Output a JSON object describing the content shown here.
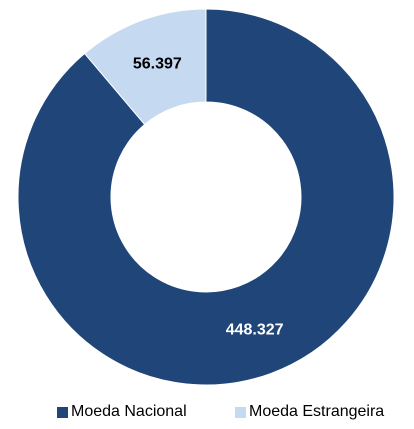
{
  "chart_data": {
    "type": "pie",
    "style": "donut",
    "categories": [
      "Moeda Nacional",
      "Moeda Estrangeira"
    ],
    "values": [
      448327,
      56397
    ],
    "value_labels": [
      "448.327",
      "56.397"
    ],
    "colors": [
      "#1F4579",
      "#C5D9F1"
    ],
    "label_colors": [
      "#FFFFFF",
      "#000000"
    ],
    "legend_placement": "bottom-right"
  },
  "legend": {
    "items": [
      {
        "label": "Moeda Nacional",
        "color": "#1F4579"
      },
      {
        "label": "Moeda Estrangeira",
        "color": "#C5D9F1"
      }
    ]
  }
}
